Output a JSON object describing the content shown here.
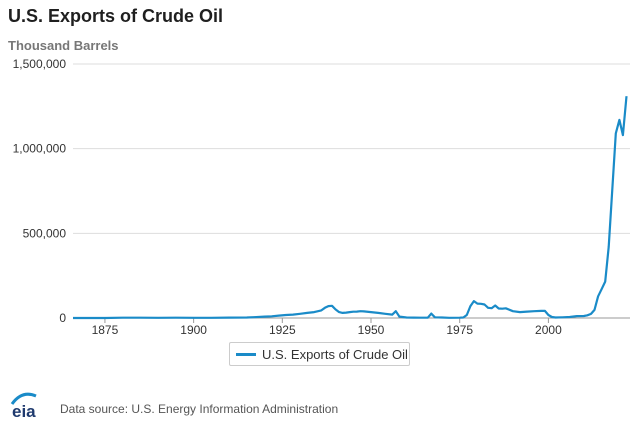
{
  "chart_data": {
    "type": "line",
    "title": "U.S. Exports of Crude Oil",
    "subtitle": "Thousand Barrels",
    "xlabel": "",
    "ylabel": "",
    "xlim": [
      1866,
      2023
    ],
    "ylim": [
      0,
      1500000
    ],
    "x_ticks": [
      1875,
      1900,
      1925,
      1950,
      1975,
      2000
    ],
    "y_ticks": [
      0,
      500000,
      1000000,
      1500000
    ],
    "y_tick_labels": [
      "0",
      "500,000",
      "1,000,000",
      "1,500,000"
    ],
    "grid": true,
    "legend": "bottom-center",
    "series": [
      {
        "name": "U.S. Exports of Crude Oil",
        "color": "#1a8bc8",
        "x": [
          1864,
          1870,
          1875,
          1880,
          1885,
          1890,
          1895,
          1900,
          1905,
          1910,
          1915,
          1917,
          1920,
          1922,
          1924,
          1926,
          1928,
          1930,
          1932,
          1934,
          1936,
          1937,
          1938,
          1939,
          1940,
          1941,
          1942,
          1943,
          1944,
          1945,
          1946,
          1947,
          1948,
          1950,
          1952,
          1954,
          1956,
          1957,
          1958,
          1960,
          1962,
          1964,
          1966,
          1967,
          1968,
          1970,
          1972,
          1975,
          1976,
          1977,
          1978,
          1979,
          1980,
          1981,
          1982,
          1983,
          1984,
          1985,
          1986,
          1987,
          1988,
          1990,
          1992,
          1994,
          1996,
          1998,
          1999,
          2000,
          2001,
          2002,
          2004,
          2006,
          2008,
          2010,
          2011,
          2012,
          2013,
          2014,
          2015,
          2016,
          2017,
          2018,
          2019,
          2020,
          2021,
          2022
        ],
        "values": [
          0,
          0,
          0,
          2000,
          1500,
          1000,
          1500,
          1000,
          1200,
          2500,
          3000,
          5000,
          8000,
          10000,
          14000,
          18000,
          20000,
          25000,
          30000,
          35000,
          45000,
          60000,
          70000,
          72000,
          51000,
          35000,
          30000,
          32000,
          35000,
          37000,
          38000,
          40000,
          39000,
          35000,
          30000,
          25000,
          20000,
          40000,
          8000,
          3000,
          2500,
          1500,
          2000,
          26000,
          4000,
          3000,
          1000,
          2000,
          3000,
          18000,
          70000,
          100000,
          85000,
          84000,
          80000,
          60000,
          58000,
          74000,
          56000,
          55000,
          57000,
          40000,
          35000,
          38000,
          40000,
          42000,
          42000,
          18000,
          6000,
          3000,
          4000,
          6000,
          11000,
          12000,
          16000,
          24000,
          48000,
          128000,
          170000,
          215000,
          420000,
          760000,
          1090000,
          1170000,
          1080000,
          1310000
        ]
      }
    ],
    "source_text": "Data source: U.S. Energy Information Administration",
    "logo_text": "eia"
  }
}
